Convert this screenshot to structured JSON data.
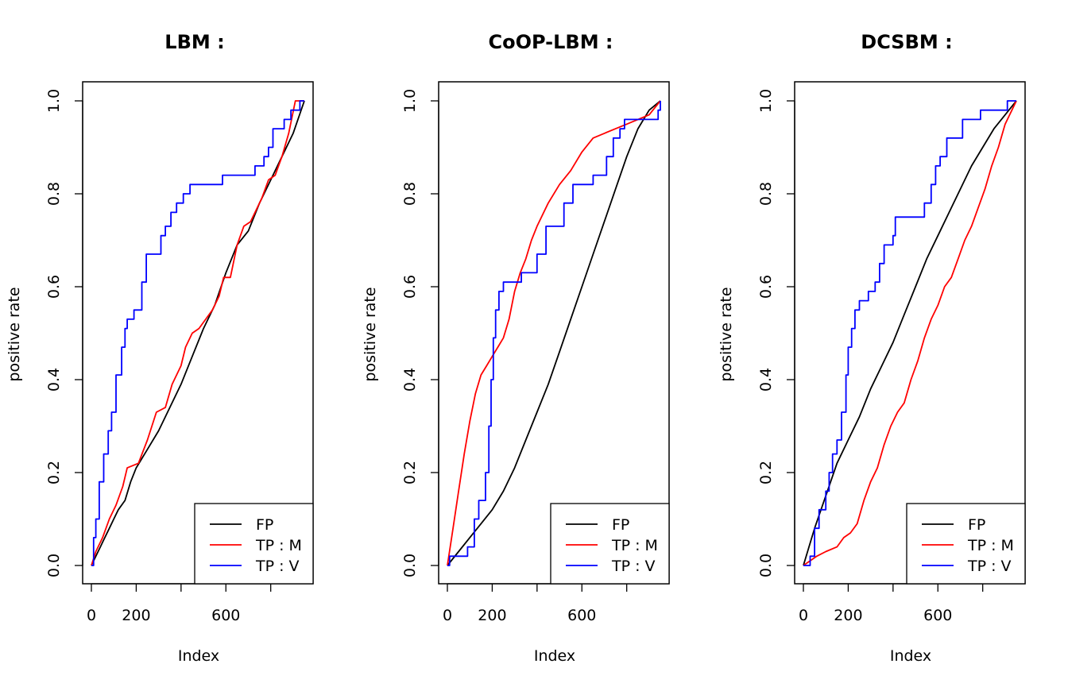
{
  "colors": {
    "FP": "#000000",
    "TP : M": "#ff0000",
    "TP : V": "#0000ff",
    "axis": "#000000",
    "background": "#ffffff"
  },
  "chart_data": [
    {
      "type": "line",
      "title": "LBM :",
      "xlabel": "Index",
      "ylabel": "positive rate",
      "xlim": [
        0,
        950
      ],
      "ylim": [
        0,
        1.0
      ],
      "x_ticks": [
        0,
        200,
        400,
        600,
        800
      ],
      "x_tick_labels": [
        "0",
        "200",
        "",
        "600",
        ""
      ],
      "y_ticks": [
        0.0,
        0.2,
        0.4,
        0.6,
        0.8,
        1.0
      ],
      "y_tick_labels": [
        "0.0",
        "0.2",
        "0.4",
        "0.6",
        "0.8",
        "1.0"
      ],
      "grid": false,
      "legend_position": "bottom-right",
      "series": [
        {
          "name": "FP",
          "color": "#000000",
          "step": false,
          "points": [
            [
              0,
              0
            ],
            [
              20,
              0.02
            ],
            [
              40,
              0.04
            ],
            [
              60,
              0.06
            ],
            [
              80,
              0.08
            ],
            [
              100,
              0.1
            ],
            [
              120,
              0.12
            ],
            [
              150,
              0.14
            ],
            [
              175,
              0.18
            ],
            [
              200,
              0.21
            ],
            [
              250,
              0.25
            ],
            [
              300,
              0.29
            ],
            [
              350,
              0.34
            ],
            [
              400,
              0.39
            ],
            [
              450,
              0.45
            ],
            [
              500,
              0.51
            ],
            [
              550,
              0.56
            ],
            [
              600,
              0.63
            ],
            [
              650,
              0.69
            ],
            [
              700,
              0.72
            ],
            [
              750,
              0.78
            ],
            [
              800,
              0.83
            ],
            [
              850,
              0.88
            ],
            [
              900,
              0.93
            ],
            [
              950,
              1.0
            ]
          ]
        },
        {
          "name": "TP : M",
          "color": "#ff0000",
          "step": false,
          "points": [
            [
              0,
              0
            ],
            [
              20,
              0.03
            ],
            [
              50,
              0.06
            ],
            [
              80,
              0.1
            ],
            [
              110,
              0.13
            ],
            [
              140,
              0.17
            ],
            [
              160,
              0.21
            ],
            [
              210,
              0.22
            ],
            [
              250,
              0.27
            ],
            [
              290,
              0.33
            ],
            [
              330,
              0.34
            ],
            [
              360,
              0.39
            ],
            [
              400,
              0.43
            ],
            [
              420,
              0.47
            ],
            [
              450,
              0.5
            ],
            [
              480,
              0.51
            ],
            [
              510,
              0.53
            ],
            [
              540,
              0.55
            ],
            [
              570,
              0.58
            ],
            [
              590,
              0.62
            ],
            [
              620,
              0.62
            ],
            [
              650,
              0.69
            ],
            [
              680,
              0.73
            ],
            [
              710,
              0.74
            ],
            [
              760,
              0.79
            ],
            [
              790,
              0.83
            ],
            [
              820,
              0.84
            ],
            [
              850,
              0.88
            ],
            [
              880,
              0.93
            ],
            [
              910,
              1.0
            ],
            [
              950,
              1.0
            ]
          ]
        },
        {
          "name": "TP : V",
          "color": "#0000ff",
          "step": true,
          "points": [
            [
              0,
              0
            ],
            [
              10,
              0.06
            ],
            [
              20,
              0.1
            ],
            [
              35,
              0.18
            ],
            [
              55,
              0.24
            ],
            [
              75,
              0.29
            ],
            [
              90,
              0.33
            ],
            [
              110,
              0.41
            ],
            [
              135,
              0.47
            ],
            [
              150,
              0.51
            ],
            [
              160,
              0.53
            ],
            [
              190,
              0.55
            ],
            [
              225,
              0.61
            ],
            [
              245,
              0.67
            ],
            [
              310,
              0.71
            ],
            [
              330,
              0.73
            ],
            [
              355,
              0.76
            ],
            [
              380,
              0.78
            ],
            [
              410,
              0.8
            ],
            [
              440,
              0.82
            ],
            [
              585,
              0.84
            ],
            [
              730,
              0.86
            ],
            [
              770,
              0.88
            ],
            [
              790,
              0.9
            ],
            [
              810,
              0.94
            ],
            [
              860,
              0.96
            ],
            [
              890,
              0.98
            ],
            [
              930,
              1.0
            ],
            [
              950,
              1.0
            ]
          ]
        }
      ]
    },
    {
      "type": "line",
      "title": "CoOP-LBM :",
      "xlabel": "Index",
      "ylabel": "positive rate",
      "xlim": [
        0,
        950
      ],
      "ylim": [
        0,
        1.0
      ],
      "x_ticks": [
        0,
        200,
        400,
        600,
        800
      ],
      "x_tick_labels": [
        "0",
        "200",
        "",
        "600",
        ""
      ],
      "y_ticks": [
        0.0,
        0.2,
        0.4,
        0.6,
        0.8,
        1.0
      ],
      "y_tick_labels": [
        "0.0",
        "0.2",
        "0.4",
        "0.6",
        "0.8",
        "1.0"
      ],
      "grid": false,
      "legend_position": "bottom-right",
      "series": [
        {
          "name": "FP",
          "color": "#000000",
          "step": false,
          "points": [
            [
              0,
              0
            ],
            [
              50,
              0.03
            ],
            [
              100,
              0.06
            ],
            [
              150,
              0.09
            ],
            [
              200,
              0.12
            ],
            [
              250,
              0.16
            ],
            [
              300,
              0.21
            ],
            [
              350,
              0.27
            ],
            [
              400,
              0.33
            ],
            [
              450,
              0.39
            ],
            [
              500,
              0.46
            ],
            [
              550,
              0.53
            ],
            [
              600,
              0.6
            ],
            [
              650,
              0.67
            ],
            [
              700,
              0.74
            ],
            [
              750,
              0.81
            ],
            [
              800,
              0.88
            ],
            [
              850,
              0.94
            ],
            [
              900,
              0.98
            ],
            [
              950,
              1.0
            ]
          ]
        },
        {
          "name": "TP : M",
          "color": "#ff0000",
          "step": false,
          "points": [
            [
              0,
              0
            ],
            [
              25,
              0.08
            ],
            [
              50,
              0.16
            ],
            [
              75,
              0.24
            ],
            [
              100,
              0.31
            ],
            [
              125,
              0.37
            ],
            [
              150,
              0.41
            ],
            [
              175,
              0.43
            ],
            [
              200,
              0.45
            ],
            [
              225,
              0.47
            ],
            [
              250,
              0.49
            ],
            [
              275,
              0.53
            ],
            [
              300,
              0.59
            ],
            [
              325,
              0.63
            ],
            [
              350,
              0.66
            ],
            [
              375,
              0.7
            ],
            [
              400,
              0.73
            ],
            [
              450,
              0.78
            ],
            [
              500,
              0.82
            ],
            [
              550,
              0.85
            ],
            [
              600,
              0.89
            ],
            [
              650,
              0.92
            ],
            [
              700,
              0.93
            ],
            [
              750,
              0.94
            ],
            [
              800,
              0.95
            ],
            [
              850,
              0.96
            ],
            [
              900,
              0.97
            ],
            [
              950,
              1.0
            ]
          ]
        },
        {
          "name": "TP : V",
          "color": "#0000ff",
          "step": true,
          "points": [
            [
              0,
              0
            ],
            [
              10,
              0.02
            ],
            [
              90,
              0.04
            ],
            [
              120,
              0.1
            ],
            [
              140,
              0.14
            ],
            [
              170,
              0.2
            ],
            [
              185,
              0.3
            ],
            [
              195,
              0.4
            ],
            [
              205,
              0.49
            ],
            [
              215,
              0.55
            ],
            [
              230,
              0.59
            ],
            [
              250,
              0.61
            ],
            [
              330,
              0.63
            ],
            [
              400,
              0.67
            ],
            [
              440,
              0.73
            ],
            [
              520,
              0.78
            ],
            [
              560,
              0.82
            ],
            [
              650,
              0.84
            ],
            [
              710,
              0.88
            ],
            [
              740,
              0.92
            ],
            [
              770,
              0.94
            ],
            [
              790,
              0.96
            ],
            [
              940,
              0.98
            ],
            [
              950,
              1.0
            ]
          ]
        }
      ]
    },
    {
      "type": "line",
      "title": "DCSBM :",
      "xlabel": "Index",
      "ylabel": "positive rate",
      "xlim": [
        0,
        950
      ],
      "ylim": [
        0,
        1.0
      ],
      "x_ticks": [
        0,
        200,
        400,
        600,
        800
      ],
      "x_tick_labels": [
        "0",
        "200",
        "",
        "600",
        ""
      ],
      "y_ticks": [
        0.0,
        0.2,
        0.4,
        0.6,
        0.8,
        1.0
      ],
      "y_tick_labels": [
        "0.0",
        "0.2",
        "0.4",
        "0.6",
        "0.8",
        "1.0"
      ],
      "grid": false,
      "legend_position": "bottom-right",
      "series": [
        {
          "name": "FP",
          "color": "#000000",
          "step": false,
          "points": [
            [
              0,
              0
            ],
            [
              50,
              0.08
            ],
            [
              100,
              0.15
            ],
            [
              150,
              0.22
            ],
            [
              200,
              0.27
            ],
            [
              250,
              0.32
            ],
            [
              300,
              0.38
            ],
            [
              350,
              0.43
            ],
            [
              400,
              0.48
            ],
            [
              450,
              0.54
            ],
            [
              500,
              0.6
            ],
            [
              550,
              0.66
            ],
            [
              600,
              0.71
            ],
            [
              650,
              0.76
            ],
            [
              700,
              0.81
            ],
            [
              750,
              0.86
            ],
            [
              800,
              0.9
            ],
            [
              850,
              0.94
            ],
            [
              900,
              0.97
            ],
            [
              950,
              1.0
            ]
          ]
        },
        {
          "name": "TP : M",
          "color": "#ff0000",
          "step": false,
          "points": [
            [
              0,
              0
            ],
            [
              30,
              0.01
            ],
            [
              60,
              0.02
            ],
            [
              100,
              0.03
            ],
            [
              150,
              0.04
            ],
            [
              180,
              0.06
            ],
            [
              210,
              0.07
            ],
            [
              240,
              0.09
            ],
            [
              270,
              0.14
            ],
            [
              300,
              0.18
            ],
            [
              330,
              0.21
            ],
            [
              360,
              0.26
            ],
            [
              390,
              0.3
            ],
            [
              420,
              0.33
            ],
            [
              450,
              0.35
            ],
            [
              480,
              0.4
            ],
            [
              510,
              0.44
            ],
            [
              540,
              0.49
            ],
            [
              570,
              0.53
            ],
            [
              600,
              0.56
            ],
            [
              630,
              0.6
            ],
            [
              660,
              0.62
            ],
            [
              690,
              0.66
            ],
            [
              720,
              0.7
            ],
            [
              750,
              0.73
            ],
            [
              780,
              0.77
            ],
            [
              810,
              0.81
            ],
            [
              840,
              0.86
            ],
            [
              870,
              0.9
            ],
            [
              900,
              0.95
            ],
            [
              930,
              0.98
            ],
            [
              950,
              1.0
            ]
          ]
        },
        {
          "name": "TP : V",
          "color": "#0000ff",
          "step": true,
          "points": [
            [
              0,
              0
            ],
            [
              30,
              0.02
            ],
            [
              50,
              0.08
            ],
            [
              70,
              0.12
            ],
            [
              100,
              0.16
            ],
            [
              115,
              0.2
            ],
            [
              130,
              0.24
            ],
            [
              150,
              0.27
            ],
            [
              170,
              0.33
            ],
            [
              190,
              0.41
            ],
            [
              200,
              0.47
            ],
            [
              215,
              0.51
            ],
            [
              230,
              0.55
            ],
            [
              250,
              0.57
            ],
            [
              290,
              0.59
            ],
            [
              320,
              0.61
            ],
            [
              340,
              0.65
            ],
            [
              360,
              0.69
            ],
            [
              400,
              0.71
            ],
            [
              410,
              0.75
            ],
            [
              540,
              0.78
            ],
            [
              570,
              0.82
            ],
            [
              590,
              0.86
            ],
            [
              610,
              0.88
            ],
            [
              640,
              0.92
            ],
            [
              710,
              0.96
            ],
            [
              790,
              0.98
            ],
            [
              910,
              1.0
            ],
            [
              950,
              1.0
            ]
          ]
        }
      ]
    }
  ]
}
